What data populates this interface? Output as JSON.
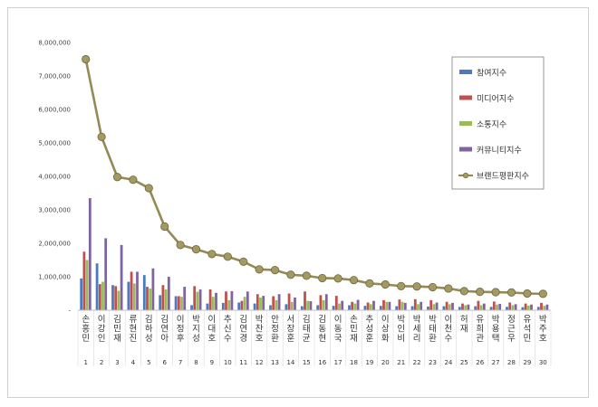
{
  "chart_data": {
    "type": "bar",
    "title": "",
    "xlabel": "",
    "ylabel": "",
    "ylim": [
      0,
      8000000
    ],
    "yticks": [
      "8,000,000",
      "7,000,000",
      "6,000,000",
      "5,000,000",
      "4,000,000",
      "3,000,000",
      "2,000,000",
      "1,000,000",
      "-"
    ],
    "grid": false,
    "legend_position": "top-right",
    "categories": [
      "손흥민",
      "이강인",
      "김민재",
      "류현진",
      "김하성",
      "김연아",
      "이정후",
      "박지성",
      "이대호",
      "추신수",
      "김연경",
      "박찬호",
      "안정환",
      "서장훈",
      "김태균",
      "김동현",
      "이동국",
      "손민재",
      "추성훈",
      "이상화",
      "박인비",
      "박세리",
      "박태환",
      "이천수",
      "허재",
      "유희관",
      "박용택",
      "정근우",
      "유석민",
      "박주호"
    ],
    "ranks": [
      "1",
      "2",
      "3",
      "4",
      "5",
      "6",
      "7",
      "8",
      "9",
      "10",
      "11",
      "12",
      "13",
      "14",
      "15",
      "16",
      "17",
      "18",
      "19",
      "20",
      "21",
      "22",
      "23",
      "24",
      "25",
      "26",
      "27",
      "28",
      "29",
      "30"
    ],
    "series": [
      {
        "name": "참여지수",
        "kind": "bar",
        "color": "#4a7bbf",
        "values": [
          950000,
          1400000,
          750000,
          850000,
          1050000,
          450000,
          420000,
          150000,
          200000,
          220000,
          230000,
          200000,
          150000,
          180000,
          120000,
          150000,
          130000,
          150000,
          130000,
          130000,
          120000,
          120000,
          110000,
          120000,
          100000,
          120000,
          100000,
          100000,
          90000,
          100000
        ]
      },
      {
        "name": "미디어지수",
        "kind": "bar",
        "color": "#c0504d",
        "values": [
          1750000,
          780000,
          720000,
          1150000,
          700000,
          750000,
          420000,
          720000,
          620000,
          560000,
          280000,
          480000,
          420000,
          500000,
          560000,
          450000,
          430000,
          250000,
          230000,
          300000,
          320000,
          330000,
          300000,
          250000,
          200000,
          280000,
          260000,
          230000,
          200000,
          220000
        ]
      },
      {
        "name": "소통지수",
        "kind": "bar",
        "color": "#9bbb59",
        "values": [
          1500000,
          850000,
          580000,
          800000,
          650000,
          620000,
          400000,
          550000,
          400000,
          300000,
          400000,
          380000,
          300000,
          250000,
          280000,
          300000,
          200000,
          200000,
          180000,
          250000,
          250000,
          180000,
          180000,
          180000,
          150000,
          150000,
          170000,
          150000,
          140000,
          130000
        ]
      },
      {
        "name": "커뮤니티지수",
        "kind": "bar",
        "color": "#8064a2",
        "values": [
          3350000,
          2150000,
          1950000,
          1150000,
          1250000,
          1000000,
          700000,
          620000,
          520000,
          570000,
          560000,
          430000,
          480000,
          380000,
          270000,
          480000,
          280000,
          310000,
          280000,
          250000,
          220000,
          250000,
          230000,
          220000,
          170000,
          200000,
          190000,
          180000,
          170000,
          170000
        ]
      },
      {
        "name": "브랜드평판지수",
        "kind": "line",
        "color": "#948a54",
        "values": [
          7500000,
          5180000,
          3980000,
          3900000,
          3650000,
          2500000,
          1950000,
          1820000,
          1680000,
          1600000,
          1450000,
          1220000,
          1200000,
          1060000,
          1030000,
          960000,
          950000,
          900000,
          800000,
          770000,
          720000,
          710000,
          690000,
          650000,
          570000,
          550000,
          540000,
          530000,
          500000,
          490000
        ]
      }
    ]
  }
}
